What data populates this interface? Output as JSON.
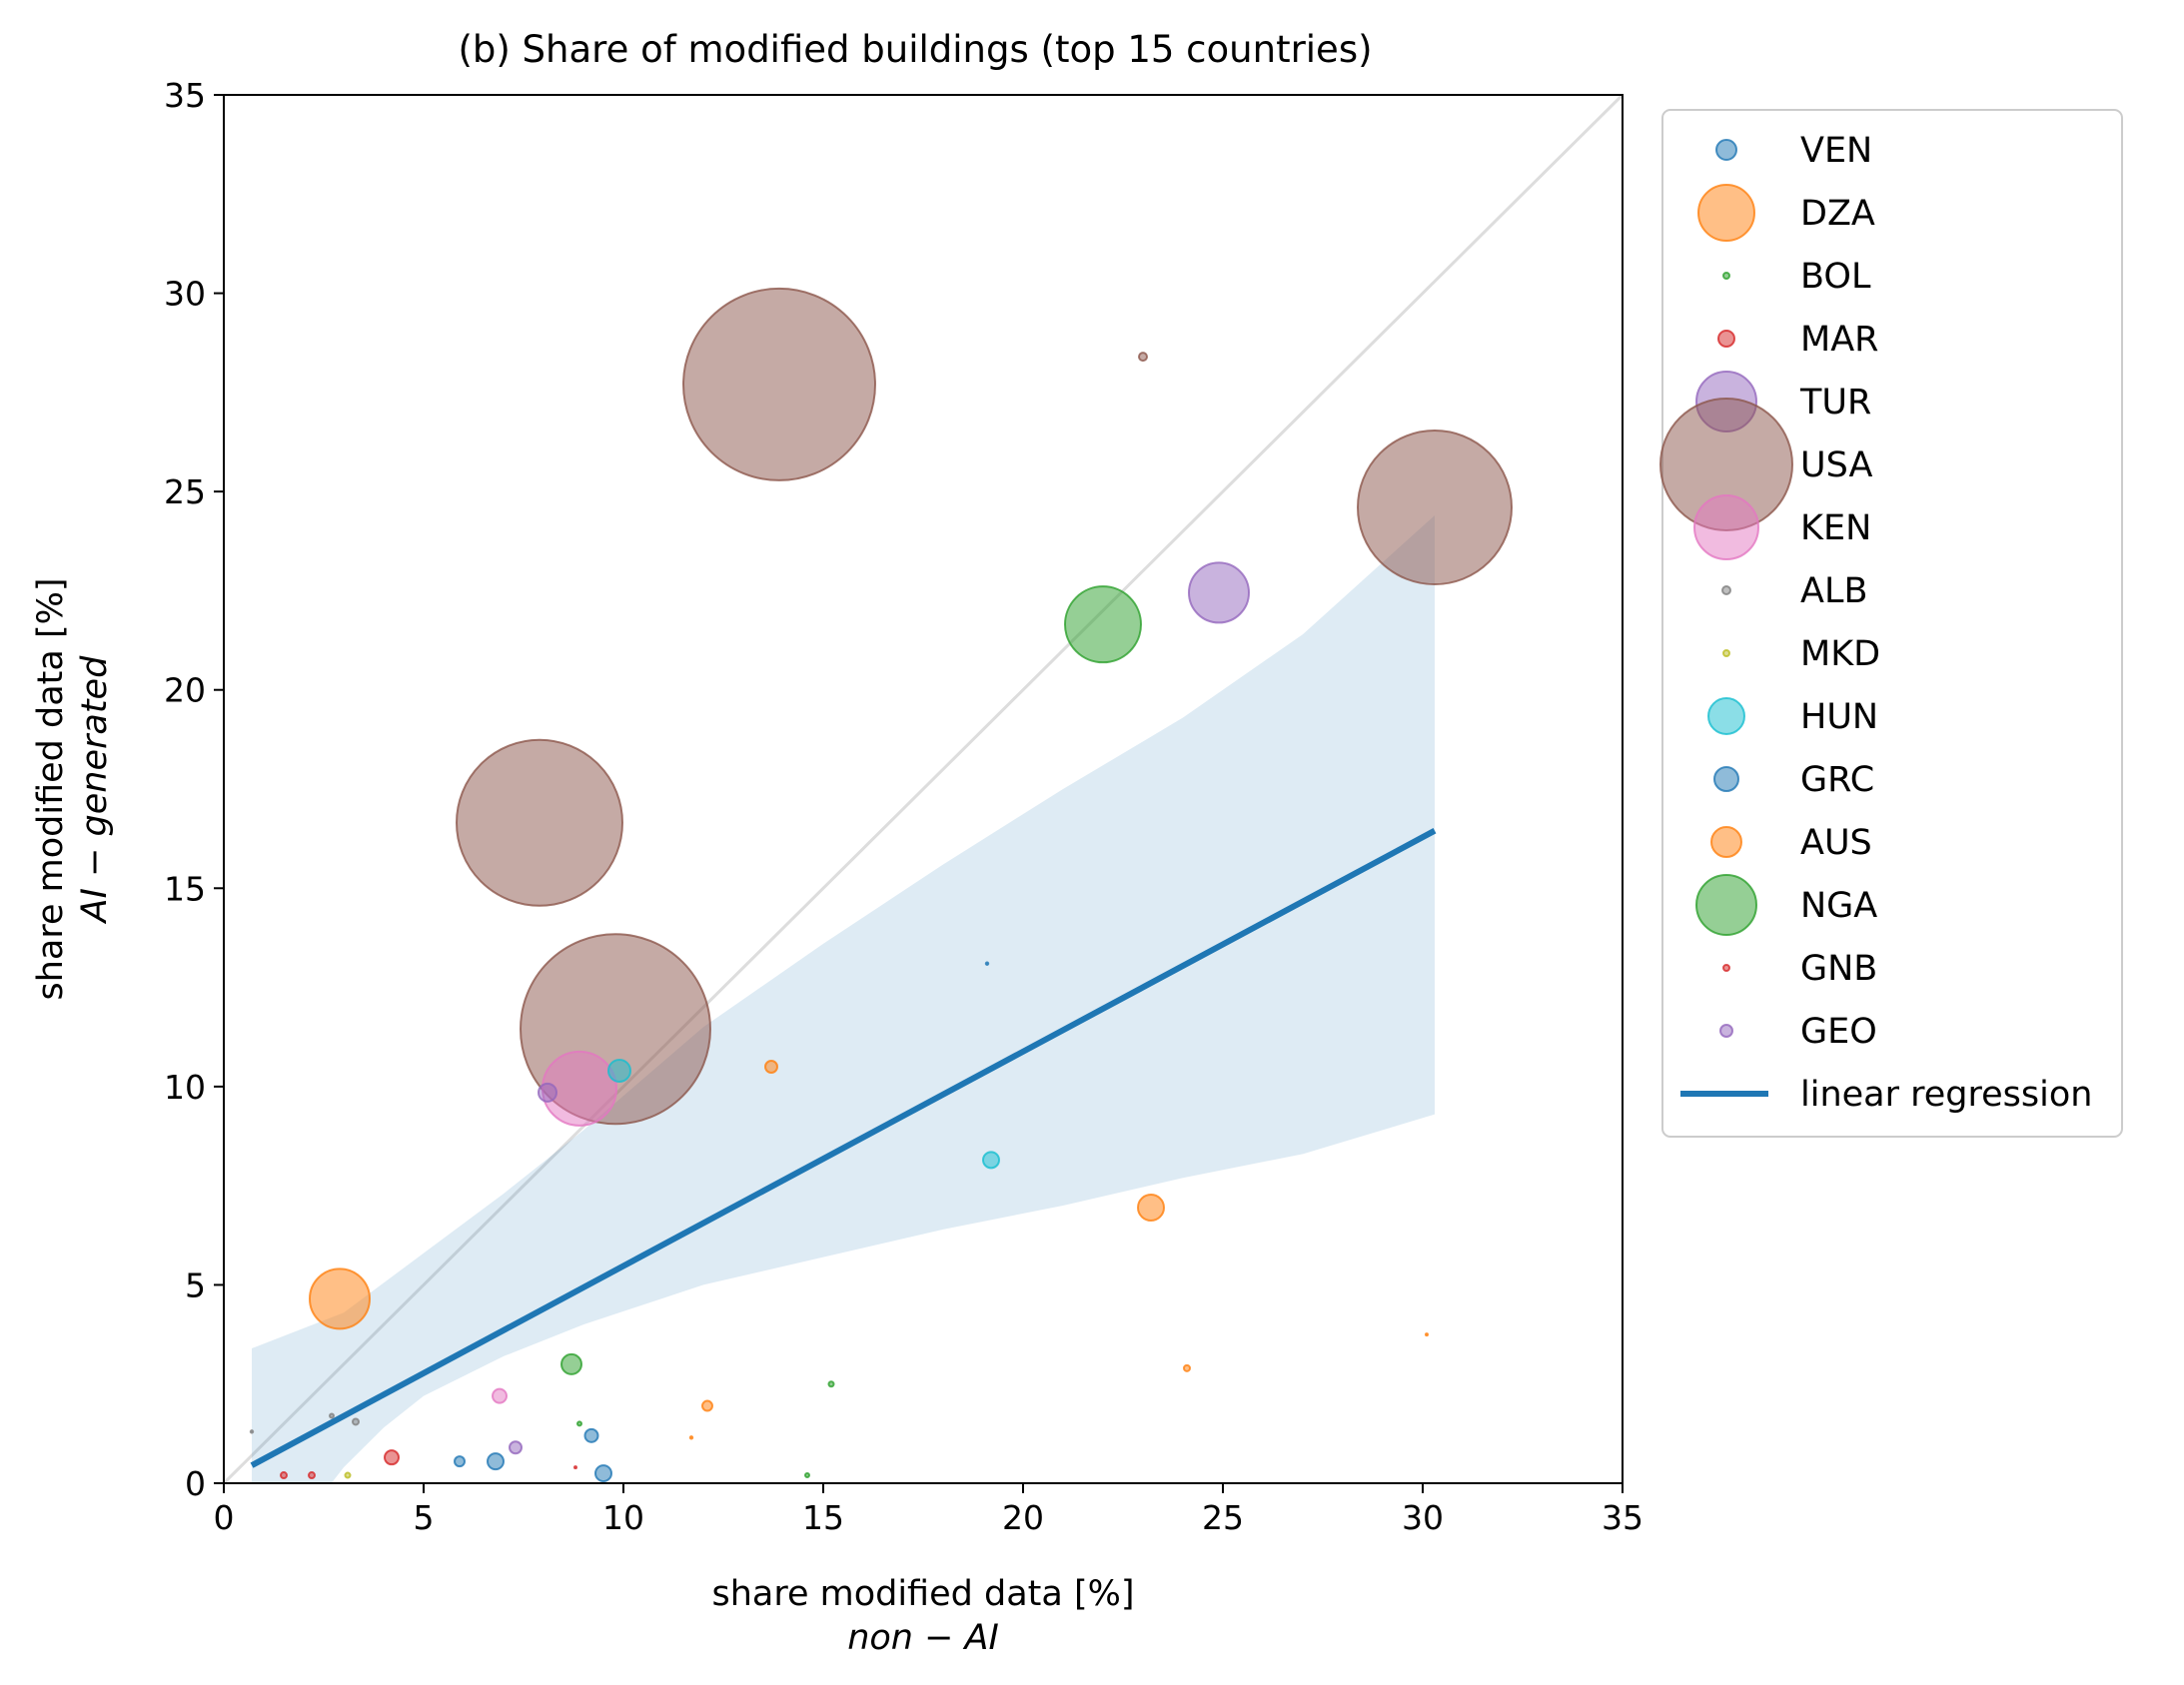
{
  "chart_data": {
    "type": "scatter",
    "title": "(b) Share of modified buildings (top 15 countries)",
    "xlabel": "share modified data [%]",
    "xlabel_sub": "non − AI",
    "ylabel": "share modified data [%]",
    "ylabel_sub": "AI − generated",
    "xlim": [
      0,
      35
    ],
    "ylim": [
      0,
      35
    ],
    "xticks": [
      0,
      5,
      10,
      15,
      20,
      25,
      30,
      35
    ],
    "yticks": [
      0,
      5,
      10,
      15,
      20,
      25,
      30,
      35
    ],
    "grid": false,
    "legend_position": "outside right",
    "identity_line": {
      "from": [
        0,
        0
      ],
      "to": [
        35,
        35
      ],
      "color": "#dddddd"
    },
    "regression": {
      "label": "linear regression",
      "color": "#1f77b4",
      "from": [
        0.7,
        0.45
      ],
      "to": [
        30.3,
        16.45
      ],
      "ci_upper": [
        [
          0.7,
          3.4
        ],
        [
          3,
          4.3
        ],
        [
          5,
          5.8
        ],
        [
          7,
          7.3
        ],
        [
          9,
          8.9
        ],
        [
          12,
          11.5
        ],
        [
          15,
          13.6
        ],
        [
          18,
          15.6
        ],
        [
          21,
          17.5
        ],
        [
          24,
          19.3
        ],
        [
          27,
          21.4
        ],
        [
          30.3,
          24.4
        ]
      ],
      "ci_lower": [
        [
          0.7,
          -1.2
        ],
        [
          2,
          -0.9
        ],
        [
          3,
          0.4
        ],
        [
          4,
          1.4
        ],
        [
          5,
          2.2
        ],
        [
          7,
          3.2
        ],
        [
          9,
          4.0
        ],
        [
          12,
          5.0
        ],
        [
          15,
          5.7
        ],
        [
          18,
          6.4
        ],
        [
          21,
          7.0
        ],
        [
          24,
          7.7
        ],
        [
          27,
          8.3
        ],
        [
          30.3,
          9.3
        ]
      ]
    },
    "series": [
      {
        "name": "VEN",
        "color": "#1f77b4",
        "legend_size": 10,
        "points": [
          {
            "x": 5.9,
            "y": 0.55,
            "s": 5
          },
          {
            "x": 6.8,
            "y": 0.55,
            "s": 8
          },
          {
            "x": 9.2,
            "y": 1.2,
            "s": 6.5
          },
          {
            "x": 9.5,
            "y": 0.25,
            "s": 8
          }
        ]
      },
      {
        "name": "DZA",
        "color": "#ff7f0e",
        "legend_size": 28,
        "points": [
          {
            "x": 2.9,
            "y": 4.65,
            "s": 30
          },
          {
            "x": 23.2,
            "y": 6.95,
            "s": 13
          },
          {
            "x": 13.7,
            "y": 10.5,
            "s": 6
          }
        ]
      },
      {
        "name": "BOL",
        "color": "#2ca02c",
        "legend_size": 3,
        "points": [
          {
            "x": 15.2,
            "y": 2.5,
            "s": 2.5
          },
          {
            "x": 14.6,
            "y": 0.2,
            "s": 2
          },
          {
            "x": 8.9,
            "y": 1.5,
            "s": 2
          }
        ]
      },
      {
        "name": "MAR",
        "color": "#d62728",
        "legend_size": 8,
        "points": [
          {
            "x": 4.2,
            "y": 0.65,
            "s": 7
          },
          {
            "x": 1.5,
            "y": 0.2,
            "s": 3
          },
          {
            "x": 2.2,
            "y": 0.2,
            "s": 3
          }
        ]
      },
      {
        "name": "TUR",
        "color": "#9467bd",
        "legend_size": 30,
        "points": [
          {
            "x": 24.9,
            "y": 22.45,
            "s": 30
          }
        ]
      },
      {
        "name": "USA",
        "color": "#8c564b",
        "legend_size": 66,
        "points": [
          {
            "x": 13.9,
            "y": 27.7,
            "s": 96
          },
          {
            "x": 30.3,
            "y": 24.6,
            "s": 77
          },
          {
            "x": 7.9,
            "y": 16.65,
            "s": 83
          },
          {
            "x": 9.8,
            "y": 11.45,
            "s": 95
          },
          {
            "x": 23.0,
            "y": 28.4,
            "s": 4
          }
        ]
      },
      {
        "name": "KEN",
        "color": "#e377c2",
        "legend_size": 32,
        "points": [
          {
            "x": 8.9,
            "y": 9.95,
            "s": 37
          },
          {
            "x": 6.9,
            "y": 2.2,
            "s": 7
          }
        ]
      },
      {
        "name": "ALB",
        "color": "#7f7f7f",
        "legend_size": 4,
        "points": [
          {
            "x": 3.3,
            "y": 1.55,
            "s": 3
          },
          {
            "x": 2.7,
            "y": 1.7,
            "s": 2
          },
          {
            "x": 0.7,
            "y": 1.3,
            "s": 1.2
          }
        ]
      },
      {
        "name": "MKD",
        "color": "#bcbd22",
        "legend_size": 3,
        "points": [
          {
            "x": 3.1,
            "y": 0.2,
            "s": 2.5
          }
        ]
      },
      {
        "name": "HUN",
        "color": "#17becf",
        "legend_size": 18,
        "points": [
          {
            "x": 9.9,
            "y": 10.4,
            "s": 11
          },
          {
            "x": 19.2,
            "y": 8.15,
            "s": 8
          }
        ]
      },
      {
        "name": "GRC",
        "color": "#1f77b4",
        "legend_size": 12,
        "points": [
          {
            "x": 19.1,
            "y": 13.1,
            "s": 1.2
          }
        ]
      },
      {
        "name": "AUS",
        "color": "#ff7f0e",
        "legend_size": 15,
        "points": [
          {
            "x": 12.1,
            "y": 1.95,
            "s": 5
          },
          {
            "x": 24.1,
            "y": 2.9,
            "s": 3
          },
          {
            "x": 11.7,
            "y": 1.15,
            "s": 1.2
          },
          {
            "x": 30.1,
            "y": 3.75,
            "s": 1
          }
        ]
      },
      {
        "name": "NGA",
        "color": "#2ca02c",
        "legend_size": 30,
        "points": [
          {
            "x": 22.0,
            "y": 21.65,
            "s": 38
          },
          {
            "x": 8.7,
            "y": 3.0,
            "s": 10
          }
        ]
      },
      {
        "name": "GNB",
        "color": "#d62728",
        "legend_size": 3,
        "points": [
          {
            "x": 8.8,
            "y": 0.4,
            "s": 1
          }
        ]
      },
      {
        "name": "GEO",
        "color": "#9467bd",
        "legend_size": 6,
        "points": [
          {
            "x": 7.3,
            "y": 0.9,
            "s": 6
          },
          {
            "x": 8.1,
            "y": 9.85,
            "s": 9
          }
        ]
      }
    ]
  }
}
